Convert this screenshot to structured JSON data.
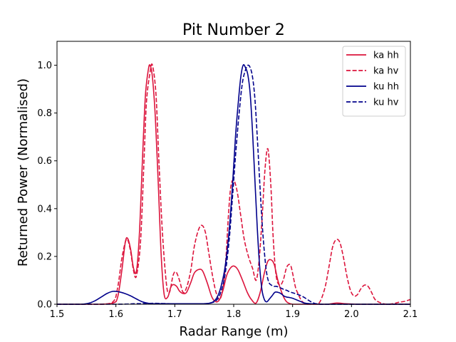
{
  "chart_data": {
    "type": "line",
    "title": "Pit Number 2",
    "xlabel": "Radar Range (m)",
    "ylabel": "Returned Power (Normalised)",
    "xlim": [
      1.5,
      2.1
    ],
    "ylim": [
      0.0,
      1.1
    ],
    "xticks": [
      "1.5",
      "1.6",
      "1.7",
      "1.8",
      "1.9",
      "2.0",
      "2.1"
    ],
    "yticks": [
      "0.0",
      "0.2",
      "0.4",
      "0.6",
      "0.8",
      "1.0"
    ],
    "grid": false,
    "legend_position": "top-right",
    "series": [
      {
        "name": "ka hh",
        "color": "#dc143c",
        "style": "solid",
        "x": [
          1.5,
          1.57,
          1.595,
          1.603,
          1.61,
          1.616,
          1.62,
          1.625,
          1.63,
          1.635,
          1.64,
          1.645,
          1.65,
          1.655,
          1.658,
          1.662,
          1.667,
          1.672,
          1.677,
          1.682,
          1.688,
          1.693,
          1.697,
          1.703,
          1.708,
          1.714,
          1.72,
          1.727,
          1.733,
          1.74,
          1.747,
          1.755,
          1.763,
          1.77,
          1.776,
          1.782,
          1.788,
          1.794,
          1.8,
          1.807,
          1.815,
          1.823,
          1.83,
          1.838,
          1.845,
          1.852,
          1.858,
          1.864,
          1.869,
          1.875,
          1.883,
          1.89,
          1.9,
          1.915,
          1.93,
          1.945,
          1.96,
          1.975,
          1.99,
          2.01,
          2.03,
          2.05,
          2.07,
          2.1
        ],
        "y": [
          0.0,
          0.0,
          0.005,
          0.03,
          0.14,
          0.26,
          0.275,
          0.23,
          0.15,
          0.14,
          0.3,
          0.6,
          0.87,
          0.98,
          1.0,
          0.95,
          0.78,
          0.5,
          0.2,
          0.04,
          0.03,
          0.07,
          0.082,
          0.075,
          0.055,
          0.045,
          0.05,
          0.09,
          0.13,
          0.145,
          0.14,
          0.09,
          0.03,
          0.01,
          0.02,
          0.06,
          0.12,
          0.15,
          0.16,
          0.145,
          0.1,
          0.05,
          0.02,
          0.005,
          0.05,
          0.13,
          0.18,
          0.185,
          0.165,
          0.1,
          0.04,
          0.01,
          0.0,
          0.0,
          0.0,
          0.0,
          0.0,
          0.005,
          0.002,
          0.0,
          0.0,
          0.0,
          0.0,
          0.0
        ]
      },
      {
        "name": "ka hv",
        "color": "#dc143c",
        "style": "dashed",
        "x": [
          1.5,
          1.57,
          1.595,
          1.603,
          1.61,
          1.616,
          1.62,
          1.625,
          1.63,
          1.635,
          1.642,
          1.648,
          1.652,
          1.658,
          1.662,
          1.668,
          1.673,
          1.679,
          1.686,
          1.691,
          1.697,
          1.702,
          1.708,
          1.714,
          1.72,
          1.727,
          1.733,
          1.74,
          1.746,
          1.752,
          1.758,
          1.764,
          1.77,
          1.776,
          1.782,
          1.787,
          1.791,
          1.795,
          1.8,
          1.806,
          1.812,
          1.818,
          1.825,
          1.832,
          1.838,
          1.843,
          1.848,
          1.853,
          1.858,
          1.863,
          1.867,
          1.872,
          1.878,
          1.884,
          1.89,
          1.896,
          1.9,
          1.905,
          1.91,
          1.915,
          1.92,
          1.925,
          1.93,
          1.935,
          1.94,
          1.945,
          1.95,
          1.956,
          1.962,
          1.968,
          1.974,
          1.98,
          1.986,
          1.992,
          1.998,
          2.004,
          2.01,
          2.016,
          2.022,
          2.028,
          2.034,
          2.04,
          2.05,
          2.06,
          2.07,
          2.08,
          2.09,
          2.1
        ],
        "y": [
          0.0,
          0.0,
          0.01,
          0.07,
          0.19,
          0.26,
          0.27,
          0.22,
          0.14,
          0.12,
          0.27,
          0.62,
          0.85,
          0.97,
          1.0,
          0.88,
          0.6,
          0.3,
          0.08,
          0.05,
          0.12,
          0.135,
          0.1,
          0.05,
          0.07,
          0.14,
          0.24,
          0.31,
          0.33,
          0.3,
          0.21,
          0.12,
          0.05,
          0.02,
          0.07,
          0.2,
          0.37,
          0.49,
          0.52,
          0.47,
          0.37,
          0.27,
          0.2,
          0.15,
          0.1,
          0.18,
          0.35,
          0.56,
          0.65,
          0.5,
          0.28,
          0.12,
          0.08,
          0.1,
          0.155,
          0.165,
          0.13,
          0.07,
          0.04,
          0.015,
          0.005,
          0.0,
          0.0,
          0.0,
          0.0,
          0.005,
          0.03,
          0.08,
          0.16,
          0.24,
          0.27,
          0.26,
          0.2,
          0.12,
          0.06,
          0.035,
          0.04,
          0.065,
          0.08,
          0.075,
          0.05,
          0.02,
          0.005,
          0.0,
          0.002,
          0.008,
          0.012,
          0.02
        ]
      },
      {
        "name": "ku hh",
        "color": "#00008b",
        "style": "solid",
        "x": [
          1.5,
          1.54,
          1.555,
          1.565,
          1.575,
          1.585,
          1.595,
          1.605,
          1.615,
          1.625,
          1.635,
          1.645,
          1.655,
          1.665,
          1.68,
          1.7,
          1.72,
          1.74,
          1.755,
          1.765,
          1.772,
          1.778,
          1.785,
          1.792,
          1.798,
          1.803,
          1.808,
          1.812,
          1.816,
          1.82,
          1.824,
          1.828,
          1.832,
          1.836,
          1.84,
          1.844,
          1.848,
          1.852,
          1.856,
          1.86,
          1.865,
          1.87,
          1.875,
          1.88,
          1.885,
          1.89,
          1.895,
          1.9,
          1.905,
          1.91,
          1.915,
          1.92,
          1.93,
          1.95,
          1.97,
          2.0,
          2.05,
          2.1
        ],
        "y": [
          0.0,
          0.0,
          0.005,
          0.015,
          0.03,
          0.045,
          0.054,
          0.052,
          0.045,
          0.035,
          0.022,
          0.01,
          0.004,
          0.002,
          0.002,
          0.002,
          0.002,
          0.002,
          0.003,
          0.01,
          0.03,
          0.07,
          0.15,
          0.3,
          0.5,
          0.7,
          0.85,
          0.95,
          1.0,
          0.99,
          0.96,
          0.88,
          0.72,
          0.52,
          0.32,
          0.16,
          0.06,
          0.02,
          0.01,
          0.02,
          0.035,
          0.05,
          0.05,
          0.045,
          0.035,
          0.03,
          0.028,
          0.025,
          0.02,
          0.015,
          0.01,
          0.005,
          0.002,
          0.0,
          0.0,
          0.0,
          0.0,
          0.0
        ]
      },
      {
        "name": "ku hv",
        "color": "#00008b",
        "style": "dashed",
        "x": [
          1.5,
          1.6,
          1.63,
          1.65,
          1.665,
          1.68,
          1.7,
          1.72,
          1.74,
          1.755,
          1.765,
          1.772,
          1.778,
          1.785,
          1.792,
          1.798,
          1.804,
          1.81,
          1.815,
          1.82,
          1.824,
          1.828,
          1.832,
          1.836,
          1.84,
          1.844,
          1.848,
          1.852,
          1.856,
          1.86,
          1.864,
          1.868,
          1.872,
          1.876,
          1.88,
          1.885,
          1.89,
          1.895,
          1.9,
          1.905,
          1.91,
          1.915,
          1.92,
          1.925,
          1.93,
          1.935,
          1.94,
          1.95,
          1.97,
          2.0,
          2.05,
          2.1
        ],
        "y": [
          0.0,
          0.0,
          0.002,
          0.003,
          0.004,
          0.003,
          0.002,
          0.002,
          0.002,
          0.003,
          0.008,
          0.02,
          0.05,
          0.12,
          0.26,
          0.45,
          0.65,
          0.82,
          0.93,
          0.98,
          1.0,
          0.99,
          0.95,
          0.86,
          0.7,
          0.52,
          0.35,
          0.22,
          0.13,
          0.09,
          0.08,
          0.075,
          0.075,
          0.072,
          0.068,
          0.062,
          0.058,
          0.052,
          0.048,
          0.044,
          0.04,
          0.035,
          0.028,
          0.02,
          0.012,
          0.006,
          0.002,
          0.0,
          0.0,
          0.0,
          0.0,
          0.0
        ]
      }
    ]
  }
}
